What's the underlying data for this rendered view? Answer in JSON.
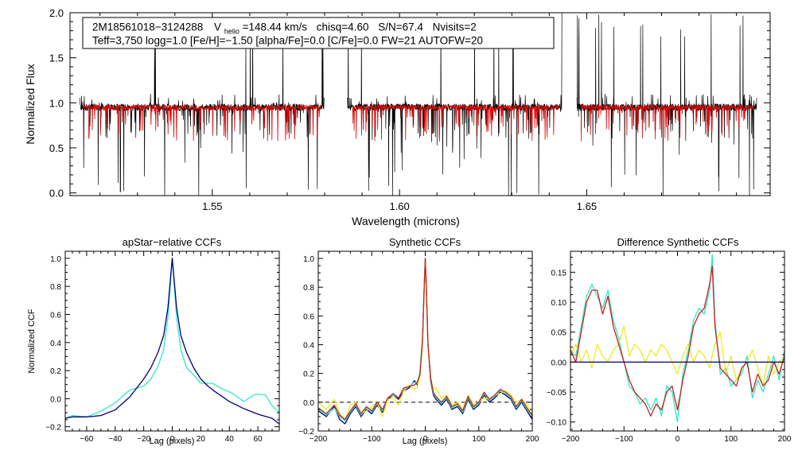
{
  "colors": {
    "observed": "#000000",
    "model": "#e00000",
    "apstar_main": "#00007a",
    "apstar_alt": "#30e8c8",
    "syn_dark": "#00007a",
    "syn_cyan": "#30e8c8",
    "syn_yellow": "#e8ec20",
    "syn_red": "#c82020",
    "zero_line": "#00007a"
  },
  "info": {
    "star_id": "2M18561018−3124288",
    "vhelio_prefix": "V",
    "vhelio_sub": "helio",
    "vhelio_value": "=148.44 km/s",
    "chisq": "chisq=4.60",
    "snr": "S/N=67.4",
    "nvisits": "Nvisits=2",
    "params_line": "Teff=3,750 logg=1.0 [Fe/H]=−1.50 [alpha/Fe]=0.0 [C/Fe]=0.0 FW=21 AUTOFW=20"
  },
  "chart_data": [
    {
      "id": "spectrum",
      "type": "line",
      "title": "",
      "xlabel": "Wavelength (microns)",
      "ylabel": "Normalized Flux",
      "xlim": [
        1.512,
        1.699
      ],
      "ylim": [
        -0.03,
        2.0
      ],
      "xticks": [
        1.55,
        1.6,
        1.65
      ],
      "xtick_labels": [
        "1.55",
        "1.60",
        "1.65"
      ],
      "yticks": [
        0.0,
        0.5,
        1.0,
        1.5,
        2.0
      ],
      "ytick_labels": [
        "0.0",
        "0.5",
        "1.0",
        "1.5",
        "2.0"
      ],
      "chips": [
        [
          1.5145,
          1.58
        ],
        [
          1.586,
          1.6435
        ],
        [
          1.6473,
          1.6955
        ]
      ],
      "model_ranges": [
        [
          1.5155,
          1.579
        ],
        [
          1.5875,
          1.6425
        ],
        [
          1.6485,
          1.6945
        ]
      ],
      "continuum": 0.95,
      "series": [
        {
          "name": "observed spectrum",
          "color_key": "observed"
        },
        {
          "name": "best-fit model",
          "color_key": "model"
        }
      ]
    },
    {
      "id": "apstar_ccf",
      "type": "line",
      "title": "apStar−relative CCFs",
      "xlabel": "Lag (pixels)",
      "ylabel": "Normalized CCF",
      "xlim": [
        -75,
        75
      ],
      "ylim": [
        -0.23,
        1.05
      ],
      "xticks": [
        -60,
        -40,
        -20,
        0,
        20,
        40,
        60
      ],
      "xtick_labels": [
        "−60",
        "−40",
        "−20",
        "0",
        "20",
        "40",
        "60"
      ],
      "yticks": [
        -0.2,
        0.0,
        0.2,
        0.4,
        0.6,
        0.8,
        1.0
      ],
      "ytick_labels": [
        "−0.2",
        "0.0",
        "0.2",
        "0.4",
        "0.6",
        "0.8",
        "1.0"
      ],
      "series": [
        {
          "name": "visit CCF 1",
          "color_key": "apstar_alt",
          "x": [
            -75,
            -70,
            -60,
            -50,
            -40,
            -30,
            -20,
            -15,
            -10,
            -6,
            -3,
            0,
            3,
            6,
            10,
            15,
            20,
            28,
            35,
            42,
            50,
            58,
            65,
            70,
            75
          ],
          "y": [
            -0.14,
            -0.12,
            -0.13,
            -0.09,
            -0.03,
            0.06,
            0.09,
            0.14,
            0.23,
            0.35,
            0.58,
            1.0,
            0.58,
            0.35,
            0.22,
            0.17,
            0.11,
            0.11,
            0.07,
            0.04,
            -0.02,
            0.03,
            0.03,
            -0.05,
            -0.1
          ]
        },
        {
          "name": "visit CCF 2",
          "color_key": "apstar_main",
          "x": [
            -75,
            -70,
            -60,
            -50,
            -40,
            -30,
            -20,
            -15,
            -10,
            -6,
            -3,
            0,
            3,
            6,
            10,
            15,
            20,
            25,
            30,
            40,
            50,
            60,
            70,
            75
          ],
          "y": [
            -0.14,
            -0.13,
            -0.13,
            -0.12,
            -0.08,
            0.01,
            0.14,
            0.22,
            0.33,
            0.45,
            0.65,
            1.0,
            0.65,
            0.45,
            0.33,
            0.22,
            0.14,
            0.09,
            0.05,
            -0.02,
            -0.07,
            -0.11,
            -0.14,
            -0.18
          ]
        }
      ]
    },
    {
      "id": "synthetic_ccf",
      "type": "line",
      "title": "Synthetic CCFs",
      "xlabel": "Lag (pixels)",
      "ylabel": "",
      "xlim": [
        -200,
        200
      ],
      "ylim": [
        -0.2,
        1.05
      ],
      "xticks": [
        -200,
        -100,
        0,
        100,
        200
      ],
      "xtick_labels": [
        "−200",
        "−100",
        "0",
        "100",
        "200"
      ],
      "yticks": [
        -0.2,
        0.0,
        0.2,
        0.4,
        0.6,
        0.8,
        1.0
      ],
      "ytick_labels": [
        "−0.2",
        "0.0",
        "0.2",
        "0.4",
        "0.6",
        "0.8",
        "1.0"
      ],
      "dashed_zero": true,
      "series": [
        {
          "name": "CCF dark",
          "color_key": "syn_dark",
          "x": [
            -200,
            -185,
            -170,
            -160,
            -150,
            -140,
            -130,
            -120,
            -110,
            -100,
            -90,
            -80,
            -70,
            -60,
            -50,
            -40,
            -30,
            -20,
            -15,
            -10,
            -5,
            -2,
            0,
            2,
            5,
            10,
            15,
            20,
            30,
            40,
            50,
            60,
            70,
            80,
            90,
            100,
            110,
            120,
            130,
            140,
            150,
            160,
            170,
            180,
            190,
            200
          ],
          "y": [
            -0.06,
            -0.1,
            -0.03,
            -0.12,
            -0.15,
            -0.08,
            -0.03,
            -0.1,
            -0.05,
            -0.08,
            -0.02,
            -0.07,
            0.02,
            0.05,
            0.02,
            0.08,
            0.1,
            0.15,
            0.12,
            0.2,
            0.45,
            0.8,
            1.0,
            0.8,
            0.4,
            0.15,
            0.05,
            0.02,
            -0.02,
            0.02,
            -0.05,
            -0.03,
            -0.08,
            0.02,
            -0.05,
            -0.02,
            0.05,
            0.0,
            0.03,
            0.07,
            0.05,
            0.02,
            -0.05,
            0.0,
            -0.06,
            -0.12
          ]
        },
        {
          "name": "CCF cyan",
          "color_key": "syn_cyan",
          "x": [
            -200,
            -185,
            -170,
            -160,
            -150,
            -140,
            -130,
            -120,
            -110,
            -100,
            -90,
            -80,
            -70,
            -60,
            -50,
            -40,
            -30,
            -20,
            -15,
            -10,
            -5,
            -2,
            0,
            2,
            5,
            10,
            15,
            20,
            30,
            40,
            50,
            60,
            70,
            80,
            90,
            100,
            110,
            120,
            130,
            140,
            150,
            160,
            170,
            180,
            190,
            200
          ],
          "y": [
            -0.05,
            -0.09,
            -0.04,
            -0.1,
            -0.13,
            -0.07,
            -0.02,
            -0.09,
            -0.04,
            -0.07,
            -0.01,
            -0.06,
            0.03,
            0.05,
            0.03,
            0.09,
            0.11,
            0.14,
            0.13,
            0.21,
            0.46,
            0.8,
            1.0,
            0.8,
            0.42,
            0.16,
            0.06,
            0.03,
            -0.01,
            0.03,
            -0.04,
            -0.02,
            -0.07,
            0.03,
            -0.04,
            -0.01,
            0.06,
            0.01,
            0.04,
            0.08,
            0.06,
            0.03,
            -0.04,
            0.01,
            -0.05,
            -0.1
          ]
        },
        {
          "name": "CCF yellow",
          "color_key": "syn_yellow",
          "x": [
            -200,
            -185,
            -170,
            -160,
            -150,
            -140,
            -130,
            -120,
            -110,
            -100,
            -90,
            -80,
            -70,
            -60,
            -50,
            -40,
            -30,
            -20,
            -15,
            -10,
            -5,
            -2,
            0,
            2,
            5,
            10,
            15,
            20,
            30,
            40,
            50,
            60,
            70,
            80,
            90,
            100,
            110,
            120,
            130,
            140,
            150,
            160,
            170,
            180,
            190,
            200
          ],
          "y": [
            0.0,
            -0.05,
            0.02,
            -0.08,
            -0.12,
            -0.02,
            0.0,
            -0.08,
            -0.06,
            -0.03,
            0.0,
            -0.1,
            0.02,
            0.03,
            -0.02,
            0.08,
            0.12,
            0.09,
            0.1,
            0.18,
            0.4,
            0.78,
            1.0,
            0.78,
            0.38,
            0.18,
            0.08,
            0.1,
            0.03,
            0.05,
            -0.02,
            0.0,
            -0.05,
            0.05,
            -0.02,
            0.0,
            0.03,
            0.02,
            0.05,
            0.06,
            0.08,
            0.05,
            0.0,
            0.02,
            -0.02,
            -0.08
          ]
        },
        {
          "name": "CCF red",
          "color_key": "syn_red",
          "x": [
            -200,
            -185,
            -170,
            -160,
            -150,
            -140,
            -130,
            -120,
            -110,
            -100,
            -90,
            -80,
            -70,
            -60,
            -50,
            -40,
            -30,
            -20,
            -15,
            -10,
            -5,
            -2,
            0,
            2,
            5,
            10,
            15,
            20,
            30,
            40,
            50,
            60,
            70,
            80,
            90,
            100,
            110,
            120,
            130,
            140,
            150,
            160,
            170,
            180,
            190,
            200
          ],
          "y": [
            -0.04,
            -0.08,
            -0.02,
            -0.09,
            -0.12,
            -0.06,
            -0.01,
            -0.08,
            -0.03,
            -0.06,
            0.0,
            -0.05,
            0.03,
            0.06,
            0.03,
            0.1,
            0.11,
            0.12,
            0.14,
            0.19,
            0.44,
            0.8,
            1.0,
            0.8,
            0.41,
            0.17,
            0.07,
            0.04,
            0.0,
            0.04,
            -0.03,
            -0.01,
            -0.06,
            0.04,
            -0.03,
            0.0,
            0.07,
            0.02,
            0.05,
            0.09,
            0.07,
            0.04,
            -0.03,
            0.02,
            -0.04,
            -0.09
          ]
        }
      ]
    },
    {
      "id": "difference_ccf",
      "type": "line",
      "title": "Difference Synthetic CCFs",
      "xlabel": "",
      "ylabel": "",
      "xlim": [
        -200,
        200
      ],
      "ylim": [
        -0.115,
        0.185
      ],
      "xticks": [
        -200,
        -100,
        0,
        100,
        200
      ],
      "xtick_labels": [
        "−200",
        "−100",
        "0",
        "100",
        "200"
      ],
      "yticks": [
        -0.1,
        -0.05,
        0.0,
        0.05,
        0.1,
        0.15
      ],
      "ytick_labels": [
        "−0.10",
        "−0.05",
        "0.00",
        "0.05",
        "0.10",
        "0.15"
      ],
      "zero_line": true,
      "series": [
        {
          "name": "difference cyan",
          "color_key": "syn_cyan",
          "x": [
            -200,
            -190,
            -180,
            -170,
            -160,
            -150,
            -140,
            -130,
            -120,
            -110,
            -100,
            -90,
            -80,
            -70,
            -60,
            -50,
            -40,
            -30,
            -20,
            -10,
            0,
            10,
            20,
            30,
            40,
            50,
            60,
            65,
            70,
            80,
            90,
            100,
            110,
            120,
            130,
            140,
            150,
            160,
            170,
            180,
            190,
            200
          ],
          "y": [
            0.02,
            0.01,
            0.06,
            0.11,
            0.13,
            0.11,
            0.09,
            0.12,
            0.07,
            0.04,
            0.0,
            -0.04,
            -0.05,
            -0.07,
            -0.06,
            -0.08,
            -0.06,
            -0.09,
            -0.04,
            -0.05,
            -0.1,
            -0.02,
            0.02,
            0.07,
            0.09,
            0.08,
            0.12,
            0.18,
            0.07,
            -0.02,
            -0.01,
            -0.04,
            -0.03,
            -0.02,
            0.01,
            -0.06,
            -0.03,
            -0.05,
            -0.02,
            0.01,
            -0.03,
            0.02
          ]
        },
        {
          "name": "difference yellow",
          "color_key": "syn_yellow",
          "x": [
            -200,
            -190,
            -180,
            -170,
            -160,
            -150,
            -140,
            -130,
            -120,
            -110,
            -100,
            -90,
            -80,
            -70,
            -60,
            -50,
            -40,
            -30,
            -20,
            -10,
            0,
            10,
            20,
            30,
            40,
            50,
            60,
            70,
            80,
            90,
            100,
            110,
            120,
            130,
            140,
            150,
            160,
            170,
            180,
            190,
            200
          ],
          "y": [
            0.01,
            0.03,
            0.0,
            0.02,
            -0.01,
            0.03,
            0.01,
            0.0,
            0.02,
            0.03,
            0.06,
            0.01,
            0.03,
            0.02,
            0.0,
            0.02,
            0.01,
            0.03,
            0.02,
            0.0,
            -0.02,
            0.01,
            0.03,
            0.0,
            0.02,
            0.01,
            -0.01,
            0.03,
            0.05,
            -0.02,
            0.01,
            -0.03,
            -0.01,
            0.0,
            0.02,
            -0.01,
            -0.04,
            0.01,
            -0.02,
            0.0,
            0.01
          ]
        },
        {
          "name": "difference red",
          "color_key": "syn_red",
          "x": [
            -200,
            -190,
            -180,
            -170,
            -160,
            -150,
            -140,
            -130,
            -120,
            -110,
            -100,
            -90,
            -80,
            -70,
            -60,
            -50,
            -40,
            -30,
            -20,
            -10,
            0,
            10,
            20,
            30,
            40,
            50,
            60,
            65,
            70,
            80,
            90,
            100,
            110,
            120,
            130,
            140,
            150,
            160,
            170,
            180,
            190,
            200
          ],
          "y": [
            0.02,
            0.0,
            0.05,
            0.1,
            0.12,
            0.12,
            0.08,
            0.11,
            0.06,
            0.03,
            0.0,
            -0.03,
            -0.05,
            -0.06,
            -0.07,
            -0.09,
            -0.07,
            -0.08,
            -0.05,
            -0.04,
            -0.08,
            -0.03,
            0.01,
            0.06,
            0.08,
            0.09,
            0.13,
            0.16,
            0.06,
            -0.01,
            -0.02,
            -0.03,
            -0.04,
            -0.01,
            0.0,
            -0.05,
            -0.02,
            -0.04,
            -0.03,
            0.0,
            -0.02,
            0.01
          ]
        }
      ]
    }
  ]
}
